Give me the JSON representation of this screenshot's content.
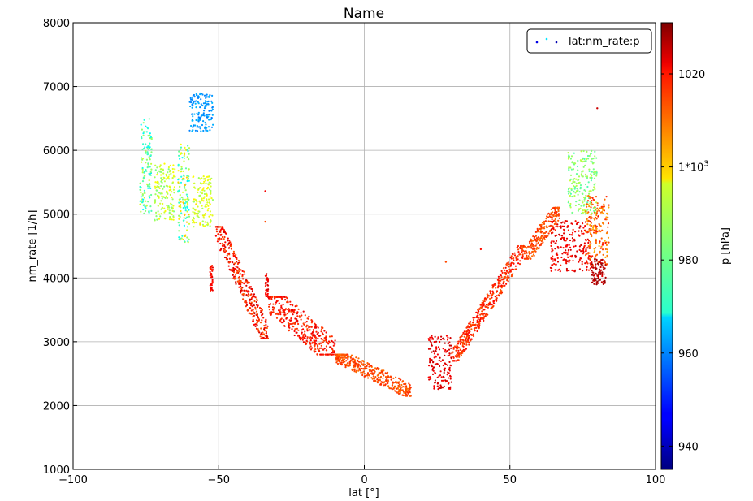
{
  "chart_data": {
    "type": "scatter",
    "title": "Name",
    "xlabel": "lat [°]",
    "ylabel": "nm_rate [1/h]",
    "xlim": [
      -100,
      100
    ],
    "ylim": [
      1000,
      8000
    ],
    "xticks": [
      -100,
      -50,
      0,
      50,
      100
    ],
    "yticks": [
      1000,
      2000,
      3000,
      4000,
      5000,
      6000,
      7000,
      8000
    ],
    "grid": true,
    "legend": {
      "placement": "top-right",
      "entries": [
        "lat:nm_rate:p"
      ]
    },
    "colorbar": {
      "label": "p [hPa]",
      "colormap": "jet",
      "range": [
        935,
        1031
      ],
      "tick_values": [
        940,
        960,
        980,
        1000,
        1020
      ],
      "tick_labels": [
        "940",
        "960",
        "980",
        "1*10^3",
        "1020"
      ]
    },
    "series": [
      {
        "name": "lat:nm_rate:p",
        "x_field": "lat",
        "y_field": "nm_rate",
        "color_field": "p",
        "clusters": [
          {
            "lat": [
              -77,
              -73
            ],
            "nm_rate": [
              5000,
              6500
            ],
            "p": [
              968,
              992
            ]
          },
          {
            "lat": [
              -72,
              -65
            ],
            "nm_rate": [
              4900,
              5800
            ],
            "p": [
              982,
              996
            ]
          },
          {
            "lat": [
              -64,
              -60
            ],
            "nm_rate": [
              4550,
              6100
            ],
            "p": [
              970,
              1002
            ]
          },
          {
            "lat": [
              -60,
              -52
            ],
            "nm_rate": [
              6300,
              6900
            ],
            "p": [
              958,
              965
            ]
          },
          {
            "lat": [
              -59,
              -52
            ],
            "nm_rate": [
              4800,
              5600
            ],
            "p": [
              985,
              998
            ]
          },
          {
            "lat": [
              -53,
              -52
            ],
            "nm_rate": [
              3800,
              4200
            ],
            "p": [
              1015,
              1022
            ]
          },
          {
            "lat": [
              -51,
              -33
            ],
            "nm_rate": [
              3050,
              4800
            ],
            "p": [
              1010,
              1024
            ]
          },
          {
            "lat": [
              -34,
              -33
            ],
            "nm_rate": [
              3700,
              4100
            ],
            "p": [
              1015,
              1024
            ]
          },
          {
            "lat": [
              -33,
              -10
            ],
            "nm_rate": [
              2800,
              3700
            ],
            "p": [
              1012,
              1022
            ]
          },
          {
            "lat": [
              -10,
              16
            ],
            "nm_rate": [
              2150,
              2800
            ],
            "p": [
              1008,
              1016
            ]
          },
          {
            "lat": [
              22,
              30
            ],
            "nm_rate": [
              2250,
              3100
            ],
            "p": [
              1018,
              1025
            ]
          },
          {
            "lat": [
              30,
              55
            ],
            "nm_rate": [
              2700,
              4500
            ],
            "p": [
              1010,
              1020
            ]
          },
          {
            "lat": [
              55,
              67
            ],
            "nm_rate": [
              4300,
              5100
            ],
            "p": [
              1008,
              1016
            ]
          },
          {
            "lat": [
              64,
              78
            ],
            "nm_rate": [
              4100,
              4900
            ],
            "p": [
              1016,
              1024
            ]
          },
          {
            "lat": [
              70,
              80
            ],
            "nm_rate": [
              5000,
              6000
            ],
            "p": [
              978,
              990
            ]
          },
          {
            "lat": [
              76,
              84
            ],
            "nm_rate": [
              4200,
              5300
            ],
            "p": [
              1002,
              1018
            ]
          },
          {
            "lat": [
              78,
              83
            ],
            "nm_rate": [
              3900,
              4300
            ],
            "p": [
              1022,
              1030
            ]
          }
        ],
        "outliers": [
          {
            "lat": -34,
            "nm_rate": 5360,
            "p": 1020
          },
          {
            "lat": -34,
            "nm_rate": 4880,
            "p": 1012
          },
          {
            "lat": 28,
            "nm_rate": 4250,
            "p": 1012
          },
          {
            "lat": 40,
            "nm_rate": 4450,
            "p": 1018
          },
          {
            "lat": 80,
            "nm_rate": 6660,
            "p": 1024
          }
        ]
      }
    ]
  }
}
